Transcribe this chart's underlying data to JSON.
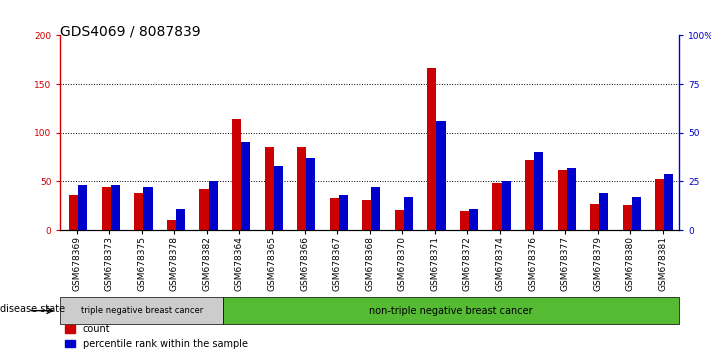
{
  "title": "GDS4069 / 8087839",
  "samples": [
    "GSM678369",
    "GSM678373",
    "GSM678375",
    "GSM678378",
    "GSM678382",
    "GSM678364",
    "GSM678365",
    "GSM678366",
    "GSM678367",
    "GSM678368",
    "GSM678370",
    "GSM678371",
    "GSM678372",
    "GSM678374",
    "GSM678376",
    "GSM678377",
    "GSM678379",
    "GSM678380",
    "GSM678381"
  ],
  "counts": [
    36,
    44,
    38,
    10,
    42,
    114,
    85,
    85,
    33,
    31,
    21,
    166,
    20,
    48,
    72,
    62,
    27,
    26,
    52
  ],
  "percentiles": [
    23,
    23,
    22,
    11,
    25,
    45,
    33,
    37,
    18,
    22,
    17,
    56,
    11,
    25,
    40,
    32,
    19,
    17,
    29
  ],
  "group1_count": 5,
  "group2_count": 14,
  "group1_label": "triple negative breast cancer",
  "group2_label": "non-triple negative breast cancer",
  "disease_state_label": "disease state",
  "count_label": "count",
  "percentile_label": "percentile rank within the sample",
  "bar_color_red": "#CC0000",
  "bar_color_blue": "#0000CC",
  "ylim_left": [
    0,
    200
  ],
  "ylim_right": [
    0,
    100
  ],
  "yticks_left": [
    0,
    50,
    100,
    150,
    200
  ],
  "yticks_right": [
    0,
    25,
    50,
    75,
    100
  ],
  "ytick_labels_right": [
    "0",
    "25",
    "50",
    "75",
    "100%"
  ],
  "bg_color_plot": "#ffffff",
  "bg_color_fig": "#ffffff",
  "group1_bg": "#cccccc",
  "group2_bg": "#55bb33",
  "title_fontsize": 10,
  "tick_fontsize": 6.5,
  "label_fontsize": 7.5
}
